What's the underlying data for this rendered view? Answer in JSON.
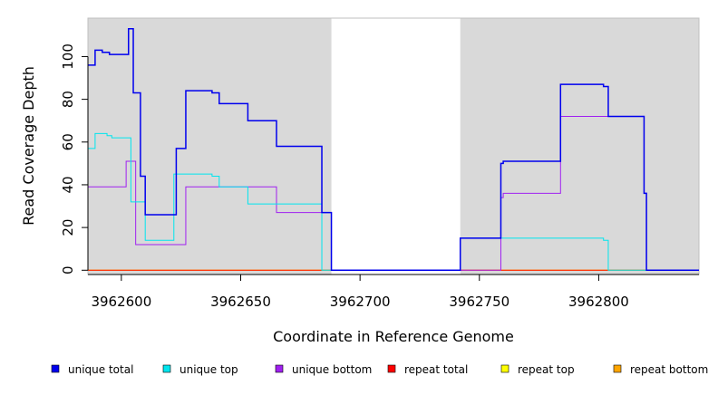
{
  "chart_data": {
    "type": "line",
    "title": "",
    "xlabel": "Coordinate in Reference Genome",
    "ylabel": "Read Coverage Depth",
    "xlim": [
      3962586,
      3962842
    ],
    "ylim": [
      -2,
      118
    ],
    "x_ticks": [
      3962600,
      3962650,
      3962700,
      3962750,
      3962800
    ],
    "y_ticks": [
      0,
      20,
      40,
      60,
      80,
      100
    ],
    "grid": false,
    "legend_position": "bottom",
    "shaded_regions": [
      {
        "x_start": 3962586,
        "x_end": 3962688,
        "color": "#d9d9d9"
      },
      {
        "x_start": 3962742,
        "x_end": 3962842,
        "color": "#d9d9d9"
      }
    ],
    "series": [
      {
        "name": "unique total",
        "color": "#0000ee",
        "x": [
          3962586,
          3962589,
          3962589,
          3962592,
          3962592,
          3962595,
          3962595,
          3962597,
          3962597,
          3962603,
          3962603,
          3962605,
          3962605,
          3962608,
          3962608,
          3962610,
          3962610,
          3962623,
          3962623,
          3962627,
          3962627,
          3962638,
          3962638,
          3962641,
          3962641,
          3962653,
          3962653,
          3962665,
          3962665,
          3962684,
          3962684,
          3962688,
          3962688,
          3962742,
          3962742,
          3962759,
          3962759,
          3962760,
          3962760,
          3962762,
          3962762,
          3962784,
          3962784,
          3962802,
          3962802,
          3962804,
          3962804,
          3962819,
          3962819,
          3962820,
          3962820,
          3962842
        ],
        "values": [
          96,
          96,
          103,
          103,
          102,
          102,
          101,
          101,
          101,
          101,
          113,
          113,
          83,
          83,
          44,
          44,
          26,
          26,
          57,
          57,
          84,
          84,
          83,
          83,
          78,
          78,
          70,
          70,
          58,
          58,
          27,
          27,
          0,
          0,
          15,
          15,
          50,
          50,
          51,
          51,
          51,
          51,
          87,
          87,
          86,
          86,
          72,
          72,
          36,
          36,
          0,
          0
        ]
      },
      {
        "name": "unique top",
        "color": "#00e5ee",
        "x": [
          3962586,
          3962589,
          3962589,
          3962594,
          3962594,
          3962596,
          3962596,
          3962604,
          3962604,
          3962610,
          3962610,
          3962622,
          3962622,
          3962638,
          3962638,
          3962641,
          3962641,
          3962653,
          3962653,
          3962684,
          3962684,
          3962742,
          3962742,
          3962759,
          3962759,
          3962802,
          3962802,
          3962804,
          3962804,
          3962842
        ],
        "values": [
          57,
          57,
          64,
          64,
          63,
          63,
          62,
          62,
          32,
          32,
          14,
          14,
          45,
          45,
          44,
          44,
          39,
          39,
          31,
          31,
          0,
          0,
          15,
          15,
          15,
          15,
          14,
          14,
          0,
          0
        ]
      },
      {
        "name": "unique bottom",
        "color": "#a020f0",
        "x": [
          3962586,
          3962602,
          3962602,
          3962606,
          3962606,
          3962627,
          3962627,
          3962665,
          3962665,
          3962688,
          3962688,
          3962759,
          3962759,
          3962760,
          3962760,
          3962784,
          3962784,
          3962819,
          3962819,
          3962820,
          3962820,
          3962842
        ],
        "values": [
          39,
          39,
          51,
          51,
          12,
          12,
          39,
          39,
          27,
          27,
          0,
          0,
          34,
          34,
          36,
          36,
          72,
          72,
          36,
          36,
          0,
          0
        ]
      },
      {
        "name": "repeat total",
        "color": "#ff0000",
        "x": [
          3962586,
          3962842
        ],
        "values": [
          0,
          0
        ]
      },
      {
        "name": "repeat top",
        "color": "#ffff00",
        "x": [
          3962586,
          3962842
        ],
        "values": [
          0,
          0
        ]
      },
      {
        "name": "repeat bottom",
        "color": "#ffa500",
        "x": [
          3962586,
          3962842
        ],
        "values": [
          0,
          0
        ]
      }
    ]
  }
}
